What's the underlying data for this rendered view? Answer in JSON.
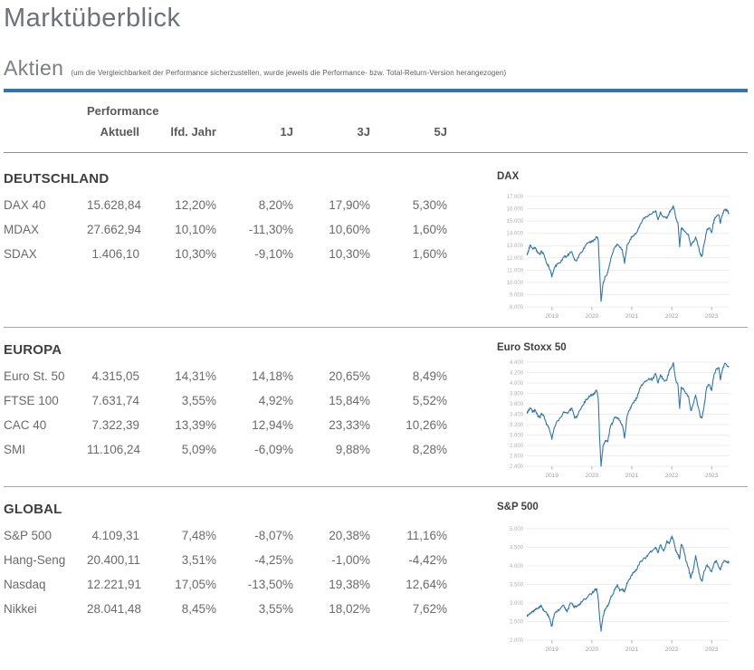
{
  "page": {
    "title": "Marktüberblick",
    "section_heading": "Aktien",
    "section_note": "(um die Vergleichbarkeit der Performance sicherzustellen, wurde jeweils die Performance- bzw. Total-Return-Version herangezogen)",
    "accent_color": "#2E75B6"
  },
  "table": {
    "group_header": "Performance",
    "columns": [
      "Aktuell",
      "lfd. Jahr",
      "1J",
      "3J",
      "5J"
    ],
    "sections": [
      {
        "title": "DEUTSCHLAND",
        "rows": [
          {
            "label": "DAX 40",
            "values": [
              "15.628,84",
              "12,20%",
              "8,20%",
              "17,90%",
              "5,30%"
            ]
          },
          {
            "label": "MDAX",
            "values": [
              "27.662,94",
              "10,10%",
              "-11,30%",
              "10,60%",
              "1,60%"
            ]
          },
          {
            "label": "SDAX",
            "values": [
              "1.406,10",
              "10,30%",
              "-9,10%",
              "10,30%",
              "1,60%"
            ]
          }
        ]
      },
      {
        "title": "EUROPA",
        "rows": [
          {
            "label": "Euro St. 50",
            "values": [
              "4.315,05",
              "14,31%",
              "14,18%",
              "20,65%",
              "8,49%"
            ]
          },
          {
            "label": "FTSE 100",
            "values": [
              "7.631,74",
              "3,55%",
              "4,92%",
              "15,84%",
              "5,52%"
            ]
          },
          {
            "label": "CAC 40",
            "values": [
              "7.322,39",
              "13,39%",
              "12,94%",
              "23,33%",
              "10,26%"
            ]
          },
          {
            "label": "SMI",
            "values": [
              "11.106,24",
              "5,09%",
              "-6,09%",
              "9,88%",
              "8,28%"
            ]
          }
        ]
      },
      {
        "title": "GLOBAL",
        "rows": [
          {
            "label": "S&P 500",
            "values": [
              "4.109,31",
              "7,48%",
              "-8,07%",
              "20,38%",
              "11,16%"
            ]
          },
          {
            "label": "Hang-Seng",
            "values": [
              "20.400,11",
              "3,51%",
              "-4,25%",
              "-1,00%",
              "-4,42%"
            ]
          },
          {
            "label": "Nasdaq",
            "values": [
              "12.221,91",
              "17,05%",
              "-13,50%",
              "19,38%",
              "12,64%"
            ]
          },
          {
            "label": "Nikkei",
            "values": [
              "28.041,48",
              "8,45%",
              "3,55%",
              "18,02%",
              "7,62%"
            ]
          }
        ]
      }
    ]
  },
  "chart_data": [
    {
      "type": "line",
      "title": "DAX",
      "x_unit": "year",
      "xlim": [
        2018.37,
        2023.45
      ],
      "ylim": [
        8000,
        17000
      ],
      "y_ticks": [
        8000,
        9000,
        10000,
        11000,
        12000,
        13000,
        14000,
        15000,
        16000,
        17000
      ],
      "x_ticks": [
        2019,
        2020,
        2021,
        2022,
        2023
      ],
      "grid": true,
      "legend": "none",
      "line_color": "#2E75B6",
      "series": [
        {
          "name": "DAX",
          "x": [
            2018.38,
            2018.42,
            2018.46,
            2018.52,
            2018.58,
            2018.64,
            2018.7,
            2018.74,
            2018.8,
            2018.86,
            2018.92,
            2018.98,
            2019.0,
            2019.06,
            2019.14,
            2019.22,
            2019.3,
            2019.38,
            2019.44,
            2019.5,
            2019.56,
            2019.62,
            2019.7,
            2019.78,
            2019.86,
            2019.94,
            2020.0,
            2020.06,
            2020.12,
            2020.16,
            2020.2,
            2020.23,
            2020.28,
            2020.34,
            2020.4,
            2020.46,
            2020.52,
            2020.58,
            2020.64,
            2020.7,
            2020.76,
            2020.82,
            2020.88,
            2020.94,
            2021.0,
            2021.06,
            2021.12,
            2021.2,
            2021.28,
            2021.36,
            2021.44,
            2021.52,
            2021.6,
            2021.66,
            2021.72,
            2021.8,
            2021.88,
            2021.94,
            2022.0,
            2022.04,
            2022.1,
            2022.16,
            2022.2,
            2022.24,
            2022.3,
            2022.36,
            2022.42,
            2022.48,
            2022.54,
            2022.6,
            2022.66,
            2022.72,
            2022.76,
            2022.82,
            2022.88,
            2022.94,
            2023.0,
            2023.06,
            2023.12,
            2023.18,
            2023.22,
            2023.28,
            2023.34,
            2023.4,
            2023.43
          ],
          "y": [
            12250,
            12700,
            13050,
            12700,
            12850,
            12400,
            12300,
            12550,
            12250,
            11600,
            11300,
            10700,
            10450,
            11200,
            11500,
            11650,
            12050,
            12150,
            12350,
            12500,
            11900,
            11750,
            12300,
            12650,
            13100,
            13250,
            13300,
            13500,
            13700,
            13500,
            10500,
            8450,
            9900,
            10500,
            10800,
            11700,
            12400,
            12900,
            13100,
            12850,
            12700,
            11550,
            13000,
            13300,
            13700,
            13900,
            14050,
            14600,
            15150,
            15350,
            15550,
            15650,
            15850,
            15100,
            15750,
            15300,
            15200,
            15700,
            15950,
            16250,
            15300,
            14800,
            12900,
            14400,
            14250,
            14050,
            13900,
            12950,
            13300,
            13700,
            13000,
            12250,
            12150,
            13250,
            14250,
            14450,
            14050,
            15100,
            15350,
            15500,
            14800,
            15650,
            15950,
            15800,
            15628
          ]
        }
      ]
    },
    {
      "type": "line",
      "title": "Euro Stoxx 50",
      "x_unit": "year",
      "xlim": [
        2018.37,
        2023.45
      ],
      "ylim": [
        2400,
        4400
      ],
      "y_ticks": [
        2400,
        2600,
        2800,
        3000,
        3200,
        3400,
        3600,
        3800,
        4000,
        4200,
        4400
      ],
      "x_ticks": [
        2019,
        2020,
        2021,
        2022,
        2023
      ],
      "grid": true,
      "legend": "none",
      "line_color": "#2E75B6",
      "series": [
        {
          "name": "Euro Stoxx 50",
          "x": [
            2018.38,
            2018.42,
            2018.46,
            2018.52,
            2018.58,
            2018.64,
            2018.7,
            2018.74,
            2018.8,
            2018.86,
            2018.92,
            2018.98,
            2019.0,
            2019.06,
            2019.14,
            2019.22,
            2019.3,
            2019.38,
            2019.44,
            2019.5,
            2019.56,
            2019.62,
            2019.7,
            2019.78,
            2019.86,
            2019.94,
            2020.0,
            2020.06,
            2020.12,
            2020.16,
            2020.2,
            2020.23,
            2020.28,
            2020.34,
            2020.4,
            2020.46,
            2020.52,
            2020.58,
            2020.64,
            2020.7,
            2020.76,
            2020.82,
            2020.88,
            2020.94,
            2021.0,
            2021.06,
            2021.12,
            2021.2,
            2021.28,
            2021.36,
            2021.44,
            2021.52,
            2021.6,
            2021.66,
            2021.72,
            2021.8,
            2021.88,
            2021.94,
            2022.0,
            2022.04,
            2022.1,
            2022.16,
            2022.2,
            2022.24,
            2022.3,
            2022.36,
            2022.42,
            2022.48,
            2022.54,
            2022.6,
            2022.66,
            2022.72,
            2022.76,
            2022.82,
            2022.88,
            2022.94,
            2023.0,
            2023.06,
            2023.12,
            2023.18,
            2023.22,
            2023.28,
            2023.34,
            2023.4,
            2023.43
          ],
          "y": [
            3420,
            3490,
            3510,
            3440,
            3480,
            3380,
            3330,
            3420,
            3370,
            3200,
            3150,
            3000,
            2930,
            3150,
            3270,
            3340,
            3450,
            3420,
            3470,
            3520,
            3350,
            3330,
            3480,
            3580,
            3690,
            3740,
            3780,
            3790,
            3860,
            3700,
            2850,
            2400,
            2790,
            2900,
            2870,
            3150,
            3240,
            3340,
            3330,
            3280,
            3200,
            2940,
            3350,
            3480,
            3570,
            3650,
            3700,
            3900,
            3980,
            4030,
            4080,
            4070,
            4180,
            4000,
            4160,
            4060,
            4050,
            4250,
            4300,
            4390,
            4070,
            3950,
            3510,
            3920,
            3870,
            3800,
            3750,
            3470,
            3600,
            3770,
            3550,
            3340,
            3330,
            3600,
            3930,
            3970,
            3850,
            4160,
            4270,
            4300,
            4060,
            4280,
            4380,
            4320,
            4315
          ]
        }
      ]
    },
    {
      "type": "line",
      "title": "S&P 500",
      "x_unit": "year",
      "xlim": [
        2018.37,
        2023.45
      ],
      "ylim": [
        2000,
        5000
      ],
      "y_ticks": [
        2000,
        2500,
        3000,
        3500,
        4000,
        4500,
        5000
      ],
      "x_ticks": [
        2019,
        2020,
        2021,
        2022,
        2023
      ],
      "grid": true,
      "legend": "none",
      "line_color": "#2E75B6",
      "series": [
        {
          "name": "S&P 500",
          "x": [
            2018.38,
            2018.42,
            2018.46,
            2018.52,
            2018.58,
            2018.64,
            2018.7,
            2018.74,
            2018.8,
            2018.86,
            2018.92,
            2018.98,
            2019.0,
            2019.06,
            2019.14,
            2019.22,
            2019.3,
            2019.38,
            2019.44,
            2019.5,
            2019.56,
            2019.62,
            2019.7,
            2019.78,
            2019.86,
            2019.94,
            2020.0,
            2020.06,
            2020.12,
            2020.16,
            2020.2,
            2020.23,
            2020.28,
            2020.34,
            2020.4,
            2020.46,
            2020.52,
            2020.58,
            2020.64,
            2020.7,
            2020.76,
            2020.82,
            2020.88,
            2020.94,
            2021.0,
            2021.06,
            2021.12,
            2021.2,
            2021.28,
            2021.36,
            2021.44,
            2021.52,
            2021.6,
            2021.66,
            2021.72,
            2021.8,
            2021.88,
            2021.94,
            2022.0,
            2022.04,
            2022.1,
            2022.16,
            2022.2,
            2022.24,
            2022.3,
            2022.36,
            2022.42,
            2022.48,
            2022.54,
            2022.6,
            2022.66,
            2022.72,
            2022.76,
            2022.82,
            2022.88,
            2022.94,
            2023.0,
            2023.06,
            2023.12,
            2023.18,
            2023.22,
            2023.28,
            2023.34,
            2023.4,
            2023.43
          ],
          "y": [
            2640,
            2700,
            2740,
            2760,
            2810,
            2850,
            2900,
            2920,
            2780,
            2740,
            2650,
            2420,
            2380,
            2700,
            2790,
            2850,
            2930,
            2760,
            2950,
            3000,
            2870,
            2930,
            2980,
            3070,
            3130,
            3230,
            3260,
            3330,
            3380,
            3100,
            2550,
            2240,
            2650,
            2850,
            2920,
            3100,
            3220,
            3390,
            3500,
            3320,
            3380,
            3300,
            3550,
            3650,
            3760,
            3850,
            3900,
            4100,
            4180,
            4230,
            4350,
            4420,
            4500,
            4350,
            4570,
            4400,
            4680,
            4600,
            4790,
            4700,
            4400,
            4300,
            4200,
            4580,
            4450,
            4120,
            3950,
            3660,
            3900,
            4280,
            3950,
            3650,
            3590,
            3870,
            4020,
            3950,
            3840,
            4050,
            4150,
            3960,
            3900,
            4080,
            4140,
            4090,
            4109
          ]
        }
      ]
    }
  ]
}
